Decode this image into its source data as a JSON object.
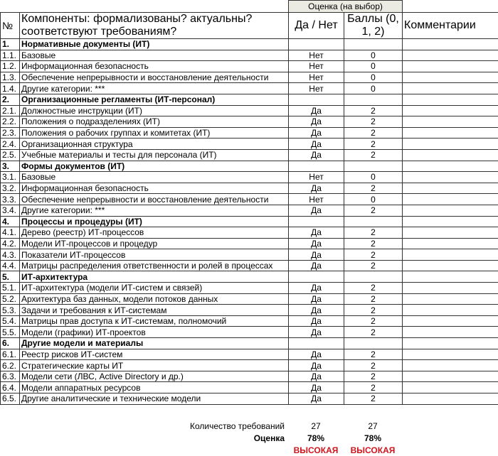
{
  "header": {
    "group_label": "Оценка (на выбор)",
    "col_no": "№",
    "col_component": "Компоненты: формализованы? актуальны? соответствуют требованиям?",
    "col_yesno": "Да / Нет",
    "col_score": "Баллы (0, 1, 2)",
    "col_comments": "Комментарии"
  },
  "rows": [
    {
      "no": "1.",
      "name": "Нормативные документы (ИТ)",
      "section": true
    },
    {
      "no": "1.1.",
      "name": "Базовые",
      "yesno": "Нет",
      "score": "0"
    },
    {
      "no": "1.2.",
      "name": "Информационная безопасность",
      "yesno": "Нет",
      "score": "0"
    },
    {
      "no": "1.3.",
      "name": "Обеспечение непрерывности и восстановление деятельности",
      "yesno": "Нет",
      "score": "0"
    },
    {
      "no": "1.4.",
      "name": "Другие категории: ***",
      "yesno": "Нет",
      "score": "0"
    },
    {
      "no": "2.",
      "name": "Организационные регламенты (ИТ-персонал)",
      "section": true
    },
    {
      "no": "2.1.",
      "name": "Должностные инструкции (ИТ)",
      "yesno": "Да",
      "score": "2"
    },
    {
      "no": "2.2.",
      "name": "Положения о подразделениях (ИТ)",
      "yesno": "Да",
      "score": "2"
    },
    {
      "no": "2.3.",
      "name": "Положения о рабочих группах и комитетах (ИТ)",
      "yesno": "Да",
      "score": "2"
    },
    {
      "no": "2.4.",
      "name": "Организационная структура",
      "yesno": "Да",
      "score": "2"
    },
    {
      "no": "2.5.",
      "name": "Учебные материалы и тесты для персонала (ИТ)",
      "yesno": "Да",
      "score": "2"
    },
    {
      "no": "3.",
      "name": "Формы документов (ИТ)",
      "section": true
    },
    {
      "no": "3.1.",
      "name": "Базовые",
      "yesno": "Нет",
      "score": "0"
    },
    {
      "no": "3.2.",
      "name": "Информационная безопасность",
      "yesno": "Да",
      "score": "2"
    },
    {
      "no": "3.3.",
      "name": "Обеспечение непрерывности и восстановление деятельности",
      "yesno": "Нет",
      "score": "0"
    },
    {
      "no": "3.4.",
      "name": "Другие категории: ***",
      "yesno": "Да",
      "score": "2"
    },
    {
      "no": "4.",
      "name": "Процессы и процедуры (ИТ)",
      "section": true
    },
    {
      "no": "4.1.",
      "name": "Дерево (реестр) ИТ-процессов",
      "yesno": "Да",
      "score": "2"
    },
    {
      "no": "4.2.",
      "name": "Модели ИТ-процессов и процедур",
      "yesno": "Да",
      "score": "2"
    },
    {
      "no": "4.3.",
      "name": "Показатели ИТ-процессов",
      "yesno": "Да",
      "score": "2"
    },
    {
      "no": "4.4.",
      "name": "Матрицы распределения ответственности и ролей в процессах",
      "yesno": "Да",
      "score": "2"
    },
    {
      "no": "5.",
      "name": "ИТ-архитектура",
      "section": true
    },
    {
      "no": "5.1.",
      "name": "ИТ-архитектура (модели ИТ-систем и связей)",
      "yesno": "Да",
      "score": "2"
    },
    {
      "no": "5.2.",
      "name": "Архитектура баз данных, модели потоков данных",
      "yesno": "Да",
      "score": "2"
    },
    {
      "no": "5.3.",
      "name": "Задачи и требования к ИТ-системам",
      "yesno": "Да",
      "score": "2"
    },
    {
      "no": "5.4.",
      "name": "Матрицы прав доступа к ИТ-системам, полномочий",
      "yesno": "Да",
      "score": "2"
    },
    {
      "no": "5.5.",
      "name": "Модели (графики) ИТ-проектов",
      "yesno": "Да",
      "score": "2"
    },
    {
      "no": "6.",
      "name": "Другие модели и материалы",
      "section": true
    },
    {
      "no": "6.1.",
      "name": "Реестр рисков ИТ-систем",
      "yesno": "Да",
      "score": "2"
    },
    {
      "no": "6.2.",
      "name": "Стратегические карты ИТ",
      "yesno": "Да",
      "score": "2"
    },
    {
      "no": "6.3.",
      "name": "Модели сети (ЛВС, Active Directory и др.)",
      "yesno": "Да",
      "score": "2"
    },
    {
      "no": "6.4.",
      "name": "Модели аппаратных ресурсов",
      "yesno": "Да",
      "score": "2"
    },
    {
      "no": "6.5.",
      "name": "Другие аналитические и технические модели",
      "yesno": "Да",
      "score": "2"
    }
  ],
  "summary": {
    "count_label": "Количество требований",
    "count_yesno": "27",
    "count_score": "27",
    "rating_label": "Оценка",
    "rating_yesno": "78%",
    "rating_score": "78%",
    "level_yesno": "ВЫСОКАЯ",
    "level_score": "ВЫСОКАЯ",
    "level_color": "#d0141c"
  }
}
